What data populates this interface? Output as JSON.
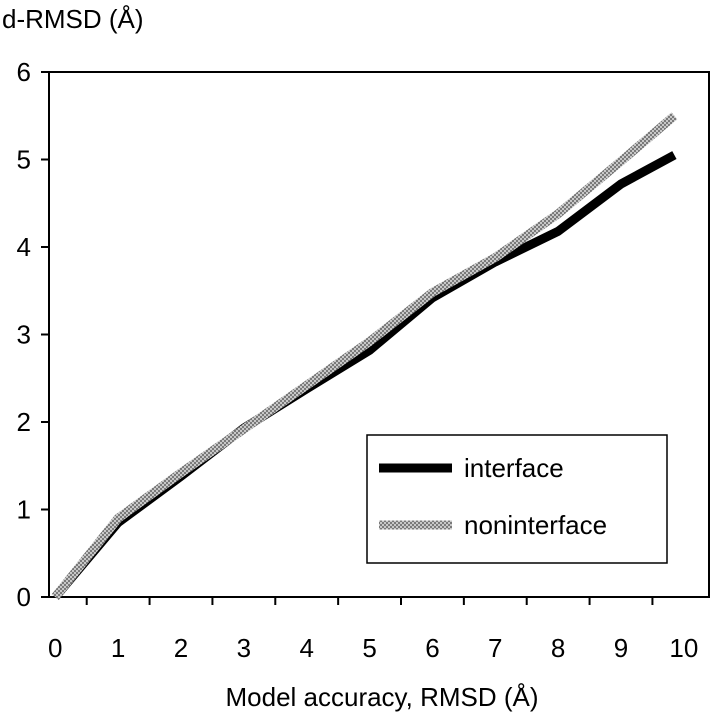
{
  "chart_data": {
    "type": "line",
    "ylabel": "d-RMSD (Å)",
    "xlabel": "Model accuracy, RMSD (Å)",
    "xlim": [
      -0.1,
      10.4
    ],
    "ylim": [
      0,
      6
    ],
    "x_ticks": [
      "0",
      "1",
      "2",
      "3",
      "4",
      "5",
      "6",
      "7",
      "8",
      "9",
      "10"
    ],
    "y_ticks": [
      "0",
      "1",
      "2",
      "3",
      "4",
      "5",
      "6"
    ],
    "grid": false,
    "legend_position": "bottom-right",
    "series": [
      {
        "name": "interface",
        "color": "#000000",
        "style": "solid",
        "x": [
          0,
          1,
          2,
          3,
          4,
          5,
          6,
          7,
          8,
          9,
          9.85
        ],
        "y": [
          0,
          0.85,
          1.38,
          1.93,
          2.38,
          2.82,
          3.42,
          3.83,
          4.18,
          4.72,
          5.05
        ]
      },
      {
        "name": "noninterface",
        "color": "#9a9a9a",
        "style": "hatched",
        "x": [
          0,
          1,
          2,
          3,
          4,
          5,
          6,
          7,
          8,
          9,
          9.85
        ],
        "y": [
          0,
          0.9,
          1.42,
          1.92,
          2.42,
          2.92,
          3.48,
          3.88,
          4.38,
          4.98,
          5.5
        ]
      }
    ]
  }
}
